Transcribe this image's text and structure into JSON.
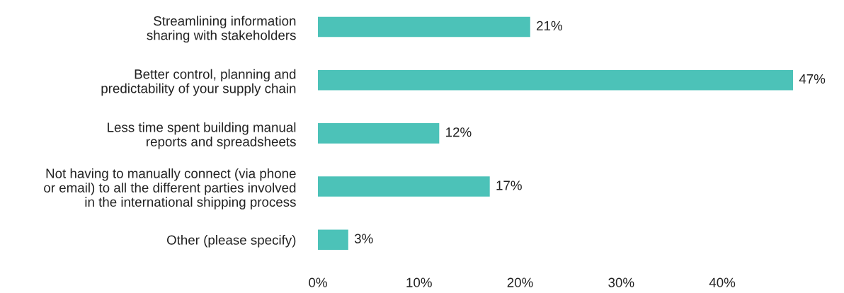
{
  "chart_data": {
    "type": "bar",
    "orientation": "horizontal",
    "categories": [
      "Streamlining information\nsharing with stakeholders",
      "Better control, planning and\npredictability of your supply chain",
      "Less time spent building manual\nreports and spreadsheets",
      "Not having to manually connect (via phone\nor email) to all the different parties involved\nin the international shipping process",
      "Other (please specify)"
    ],
    "values": [
      21,
      47,
      12,
      17,
      3
    ],
    "value_labels": [
      "21%",
      "47%",
      "12%",
      "17%",
      "3%"
    ],
    "color": "#4cc2b8",
    "xlim": [
      0,
      47
    ],
    "xticks": [
      {
        "value": 0,
        "label": "0%"
      },
      {
        "value": 10,
        "label": "10%"
      },
      {
        "value": 20,
        "label": "20%"
      },
      {
        "value": 30,
        "label": "30%"
      },
      {
        "value": 40,
        "label": "40%"
      }
    ],
    "grid": false,
    "legend": false
  }
}
